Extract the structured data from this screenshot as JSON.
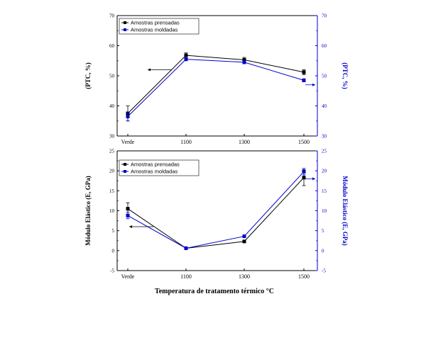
{
  "chart_data": [
    {
      "type": "line",
      "ylabel": "(PTC, %)",
      "ylabel_right": "(PTC, %)",
      "categories": [
        "Verde",
        "1100",
        "1300",
        "1500"
      ],
      "ylim": [
        30,
        70
      ],
      "ylim_right": [
        30,
        70
      ],
      "yticks": [
        30,
        40,
        50,
        60,
        70
      ],
      "series": [
        {
          "name": "Amostras prensadas",
          "color": "#000000",
          "values": [
            37.5,
            56.8,
            55.3,
            51.2
          ],
          "errors": [
            2.5,
            0.8,
            0.8,
            0.8
          ]
        },
        {
          "name": "Amostras moldadas",
          "color": "#0000cc",
          "values": [
            36.5,
            55.5,
            54.5,
            48.5
          ],
          "errors": [
            1.5,
            0.5,
            0.5,
            0.5
          ]
        }
      ],
      "axis_arrows": [
        {
          "series": "Amostras prensadas",
          "category": "1100",
          "value": 52,
          "points_to": "left-axis"
        },
        {
          "series": "Amostras moldadas",
          "category": "1500",
          "value": 47,
          "points_to": "right-axis"
        }
      ]
    },
    {
      "type": "line",
      "ylabel": "Módulo Elástico (E, GPa)",
      "ylabel_right": "Módulo Elástico (E, GPa)",
      "xlabel": "Temperatura de tratamento térmico °C",
      "categories": [
        "Verde",
        "1100",
        "1300",
        "1500"
      ],
      "ylim": [
        -5,
        25
      ],
      "ylim_right": [
        -5,
        25
      ],
      "yticks": [
        -5,
        0,
        5,
        10,
        15,
        20,
        25
      ],
      "series": [
        {
          "name": "Amostras prensadas",
          "color": "#000000",
          "values": [
            10.5,
            0.6,
            2.3,
            18.3
          ],
          "errors": [
            1.5,
            0.2,
            0.3,
            2.0
          ]
        },
        {
          "name": "Amostras moldadas",
          "color": "#0000cc",
          "values": [
            8.8,
            0.6,
            3.6,
            19.8
          ],
          "errors": [
            0.8,
            0.2,
            0.2,
            0.8
          ]
        }
      ],
      "axis_arrows": [
        {
          "series": "Amostras prensadas",
          "category": "Verde",
          "value": 6,
          "points_to": "left-axis"
        },
        {
          "series": "Amostras moldadas",
          "category": "1500",
          "value": 18,
          "points_to": "right-axis"
        }
      ]
    }
  ]
}
